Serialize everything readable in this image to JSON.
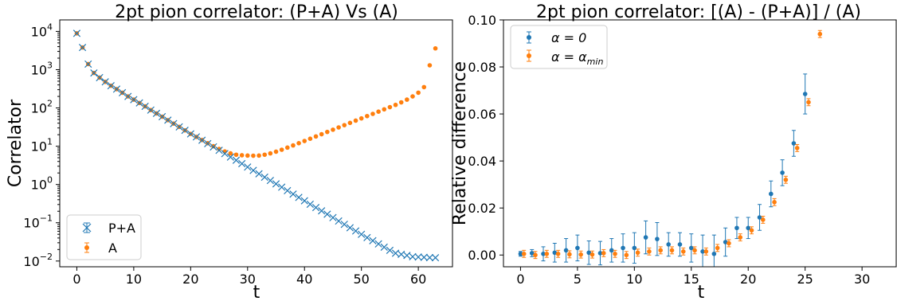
{
  "chart_data": [
    {
      "type": "scatter",
      "title": "2pt pion correlator: (P+A) Vs (A)",
      "xlabel": "t",
      "ylabel": "Correlator",
      "xlim": [
        -3,
        66
      ],
      "ylim_log10": [
        -2.15,
        4.3
      ],
      "yscale": "log",
      "xticks": [
        0,
        10,
        20,
        30,
        40,
        50,
        60
      ],
      "yticks": [
        -2,
        -1,
        0,
        1,
        2,
        3,
        4
      ],
      "ytick_labels": [
        {
          "base": "10",
          "exp": "−2"
        },
        {
          "base": "10",
          "exp": "−1"
        },
        {
          "base": "10",
          "exp": "0"
        },
        {
          "base": "10",
          "exp": "1"
        },
        {
          "base": "10",
          "exp": "2"
        },
        {
          "base": "10",
          "exp": "3"
        },
        {
          "base": "10",
          "exp": "4"
        }
      ],
      "legend": {
        "position": "lower-left",
        "entries": [
          {
            "label": "P+A",
            "marker": "x",
            "color": "#1f77b4"
          },
          {
            "label": "A",
            "marker": "circle",
            "color": "#ff7f0e"
          }
        ]
      },
      "grid": false,
      "series": [
        {
          "name": "P+A",
          "marker": "x",
          "color": "#1f77b4",
          "x": [
            0,
            1,
            2,
            3,
            4,
            5,
            6,
            7,
            8,
            9,
            10,
            11,
            12,
            13,
            14,
            15,
            16,
            17,
            18,
            19,
            20,
            21,
            22,
            23,
            24,
            25,
            26,
            27,
            28,
            29,
            30,
            31,
            32,
            33,
            34,
            35,
            36,
            37,
            38,
            39,
            40,
            41,
            42,
            43,
            44,
            45,
            46,
            47,
            48,
            49,
            50,
            51,
            52,
            53,
            54,
            55,
            56,
            57,
            58,
            59,
            60,
            61,
            62,
            63
          ],
          "y": [
            8900,
            3800,
            1400,
            820,
            620,
            480,
            380,
            310,
            250,
            200,
            165,
            135,
            110,
            88,
            72,
            59,
            48,
            39,
            32,
            26,
            21,
            17.5,
            14.3,
            11.7,
            9.6,
            7.8,
            6.4,
            5.2,
            4.3,
            3.5,
            2.85,
            2.33,
            1.9,
            1.55,
            1.27,
            1.04,
            0.85,
            0.69,
            0.56,
            0.46,
            0.375,
            0.305,
            0.25,
            0.205,
            0.167,
            0.136,
            0.111,
            0.091,
            0.074,
            0.061,
            0.05,
            0.041,
            0.034,
            0.028,
            0.023,
            0.019,
            0.016,
            0.015,
            0.014,
            0.013,
            0.0127,
            0.0125,
            0.0123,
            0.0122
          ]
        },
        {
          "name": "A",
          "marker": "circle",
          "color": "#ff7f0e",
          "x": [
            0,
            1,
            2,
            3,
            4,
            5,
            6,
            7,
            8,
            9,
            10,
            11,
            12,
            13,
            14,
            15,
            16,
            17,
            18,
            19,
            20,
            21,
            22,
            23,
            24,
            25,
            26,
            27,
            28,
            29,
            30,
            31,
            32,
            33,
            34,
            35,
            36,
            37,
            38,
            39,
            40,
            41,
            42,
            43,
            44,
            45,
            46,
            47,
            48,
            49,
            50,
            51,
            52,
            53,
            54,
            55,
            56,
            57,
            58,
            59,
            60,
            61,
            62,
            63
          ],
          "y": [
            8900,
            3800,
            1400,
            820,
            620,
            480,
            380,
            310,
            250,
            200,
            165,
            135,
            110,
            88,
            72,
            59,
            48,
            39,
            32,
            26,
            21,
            17.5,
            14.5,
            12,
            10,
            8.5,
            7.3,
            6.5,
            6,
            5.8,
            5.7,
            5.65,
            5.7,
            6,
            6.5,
            7.2,
            8.1,
            9.2,
            10.5,
            12,
            13.7,
            15.7,
            18,
            20.6,
            23.6,
            27,
            31,
            35.5,
            40.7,
            46.6,
            53.4,
            61.2,
            70,
            80,
            92,
            105,
            120,
            140,
            165,
            200,
            250,
            350,
            1300,
            3600
          ]
        }
      ]
    },
    {
      "type": "scatter",
      "title": "2pt pion correlator: [(A) - (P+A)] / (A)",
      "xlabel": "t",
      "ylabel": "Relative difference",
      "xlim": [
        -1.5,
        33
      ],
      "ylim": [
        -0.005,
        0.1
      ],
      "xticks": [
        0,
        5,
        10,
        15,
        20,
        25,
        30
      ],
      "yticks": [
        0,
        0.02,
        0.04,
        0.06,
        0.08,
        0.1
      ],
      "ytick_labels": [
        "0.00",
        "0.02",
        "0.04",
        "0.06",
        "0.08",
        "0.10"
      ],
      "legend": {
        "position": "top-left",
        "entries": [
          {
            "label": "α = 0",
            "color": "#1f77b4"
          },
          {
            "label": "α = α",
            "sub": "min",
            "color": "#ff7f0e"
          }
        ]
      },
      "grid": false,
      "series": [
        {
          "name": "α = 0",
          "color": "#1f77b4",
          "errorbars": true,
          "x": [
            0,
            1,
            2,
            3,
            4,
            5,
            6,
            7,
            8,
            9,
            10,
            11,
            12,
            13,
            14,
            15,
            16,
            17,
            18,
            19,
            20,
            21,
            22,
            23,
            24,
            25
          ],
          "y": [
            0.0005,
            0.0008,
            0.0005,
            0.001,
            0.002,
            0.003,
            0.001,
            0.0008,
            0.002,
            0.003,
            0.003,
            0.0075,
            0.0068,
            0.0045,
            0.0045,
            0.003,
            0.0015,
            0.0005,
            0.0055,
            0.0115,
            0.0115,
            0.016,
            0.026,
            0.035,
            0.0475,
            0.0685
          ],
          "yerr": [
            0.001,
            0.0015,
            0.003,
            0.004,
            0.005,
            0.0055,
            0.005,
            0.005,
            0.005,
            0.006,
            0.0065,
            0.007,
            0.007,
            0.005,
            0.005,
            0.006,
            0.007,
            0.008,
            0.006,
            0.0045,
            0.0045,
            0.0055,
            0.0055,
            0.0055,
            0.0055,
            0.0085
          ]
        },
        {
          "name": "α = α_min",
          "color": "#ff7f0e",
          "errorbars": true,
          "x": [
            0.3,
            1.3,
            2.3,
            3.3,
            4.3,
            5.3,
            6.3,
            7.3,
            8.3,
            9.3,
            10.3,
            11.3,
            12.3,
            13.3,
            14.3,
            15.3,
            16.3,
            17.3,
            18.3,
            19.3,
            20.3,
            21.3,
            22.3,
            23.3,
            24.3,
            25.3,
            26.3
          ],
          "y": [
            0.0005,
            0,
            0.0005,
            0.0005,
            0.0003,
            0.0002,
            0.0002,
            0.0008,
            0.0005,
            0,
            0.001,
            0.0015,
            0.002,
            0.002,
            0.0015,
            0.002,
            0.0015,
            0.003,
            0.005,
            0.0075,
            0.0105,
            0.015,
            0.0225,
            0.032,
            0.0455,
            0.065,
            0.094
          ]
        }
      ]
    }
  ]
}
